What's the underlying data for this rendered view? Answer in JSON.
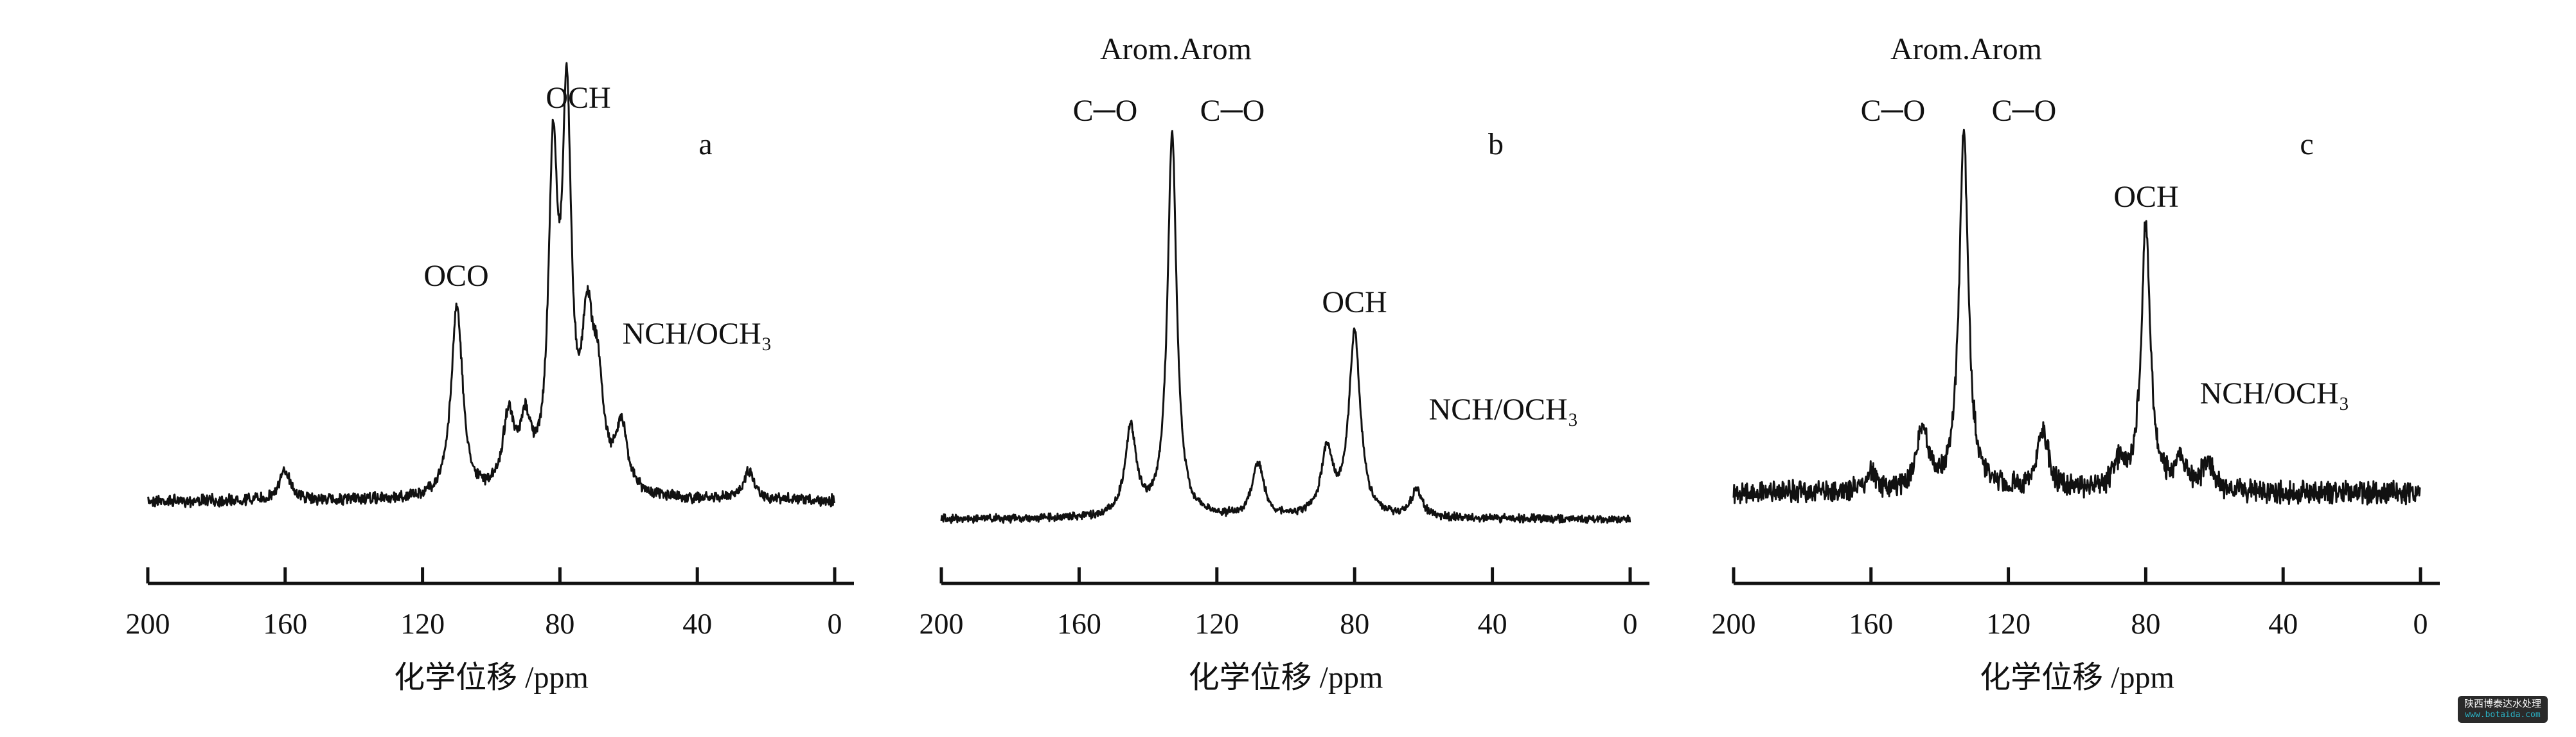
{
  "chart_data": [
    {
      "type": "line",
      "panel_label": "a",
      "xlabel": "化学位移 /ppm",
      "xlim": [
        200,
        0
      ],
      "x_ticks": [
        "200",
        "160",
        "120",
        "80",
        "40",
        "0"
      ],
      "y_axis_shown": false,
      "grid": false,
      "annotations": [
        {
          "text": "OCO",
          "ppm": 110
        },
        {
          "text": "OCH",
          "ppm": 78
        },
        {
          "text": "NCH/OCH₃",
          "ppm": 62
        }
      ],
      "peaks": [
        {
          "ppm": 160,
          "relative_intensity": 0.08
        },
        {
          "ppm": 110,
          "relative_intensity": 0.52
        },
        {
          "ppm": 95,
          "relative_intensity": 0.2
        },
        {
          "ppm": 90,
          "relative_intensity": 0.17
        },
        {
          "ppm": 82,
          "relative_intensity": 0.85
        },
        {
          "ppm": 78,
          "relative_intensity": 1.0
        },
        {
          "ppm": 72,
          "relative_intensity": 0.4
        },
        {
          "ppm": 69,
          "relative_intensity": 0.25
        },
        {
          "ppm": 62,
          "relative_intensity": 0.18
        },
        {
          "ppm": 25,
          "relative_intensity": 0.08
        }
      ]
    },
    {
      "type": "line",
      "panel_label": "b",
      "xlabel": "化学位移 /ppm",
      "xlim": [
        200,
        0
      ],
      "x_ticks": [
        "200",
        "160",
        "120",
        "80",
        "40",
        "0"
      ],
      "y_axis_shown": false,
      "grid": false,
      "annotations": [
        {
          "text": "Arom.Arom",
          "ppm": 140
        },
        {
          "text": "C─O",
          "ppm": 145
        },
        {
          "text": "C─O",
          "ppm": 133
        },
        {
          "text": "OCH",
          "ppm": 80
        },
        {
          "text": "NCH/OCH₃",
          "ppm": 62
        }
      ],
      "peaks": [
        {
          "ppm": 145,
          "relative_intensity": 0.23
        },
        {
          "ppm": 133,
          "relative_intensity": 1.0
        },
        {
          "ppm": 108,
          "relative_intensity": 0.14
        },
        {
          "ppm": 88,
          "relative_intensity": 0.17
        },
        {
          "ppm": 80,
          "relative_intensity": 0.48
        },
        {
          "ppm": 62,
          "relative_intensity": 0.07
        }
      ]
    },
    {
      "type": "line",
      "panel_label": "c",
      "xlabel": "化学位移 /ppm",
      "xlim": [
        200,
        0
      ],
      "x_ticks": [
        "200",
        "160",
        "120",
        "80",
        "40",
        "0"
      ],
      "y_axis_shown": false,
      "grid": false,
      "annotations": [
        {
          "text": "Arom.Arom",
          "ppm": 140
        },
        {
          "text": "C─O",
          "ppm": 145
        },
        {
          "text": "C─O",
          "ppm": 133
        },
        {
          "text": "OCH",
          "ppm": 80
        },
        {
          "text": "NCH/OCH₃",
          "ppm": 62
        }
      ],
      "peaks": [
        {
          "ppm": 160,
          "relative_intensity": 0.05
        },
        {
          "ppm": 145,
          "relative_intensity": 0.17
        },
        {
          "ppm": 133,
          "relative_intensity": 1.0
        },
        {
          "ppm": 110,
          "relative_intensity": 0.17
        },
        {
          "ppm": 88,
          "relative_intensity": 0.07
        },
        {
          "ppm": 80,
          "relative_intensity": 0.74
        },
        {
          "ppm": 70,
          "relative_intensity": 0.08
        },
        {
          "ppm": 62,
          "relative_intensity": 0.08
        }
      ]
    }
  ],
  "watermark": {
    "line1": "陕西博泰达水处理",
    "line2": "www.botaida.com"
  },
  "colors": {
    "line": "#111111",
    "watermark_bg": "#2a2a2a",
    "watermark_url": "#2ab5c8"
  }
}
